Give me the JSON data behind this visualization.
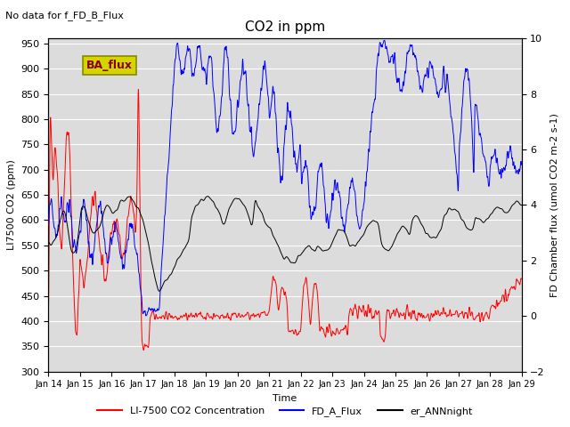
{
  "title": "CO2 in ppm",
  "top_left_text": "No data for f_FD_B_Flux",
  "xlabel": "Time",
  "ylabel_left": "LI7500 CO2 (ppm)",
  "ylabel_right": "FD Chamber flux (umol CO2 m-2 s-1)",
  "ylim_left": [
    300,
    960
  ],
  "ylim_right": [
    -2,
    10
  ],
  "yticks_left": [
    300,
    350,
    400,
    450,
    500,
    550,
    600,
    650,
    700,
    750,
    800,
    850,
    900,
    950
  ],
  "yticks_right": [
    -2,
    0,
    2,
    4,
    6,
    8,
    10
  ],
  "xticklabels": [
    "Jan 14",
    "Jan 15",
    "Jan 16",
    "Jan 17",
    "Jan 18",
    "Jan 19",
    "Jan 20",
    "Jan 21",
    "Jan 22",
    "Jan 23",
    "Jan 24",
    "Jan 25",
    "Jan 26",
    "Jan 27",
    "Jan 28",
    "Jan 29"
  ],
  "legend_entries": [
    "LI-7500 CO2 Concentration",
    "FD_A_Flux",
    "er_ANNnight"
  ],
  "legend_colors": [
    "red",
    "blue",
    "black"
  ],
  "ba_flux_box_color": "#d4d400",
  "ba_flux_text_color": "#8B0000",
  "background_color": "#dcdcdc",
  "grid_color": "white",
  "n_points": 2000
}
